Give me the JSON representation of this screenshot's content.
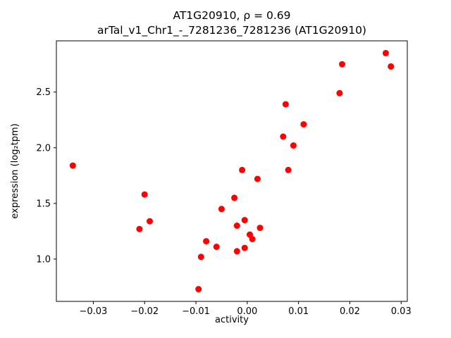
{
  "chart_data": {
    "type": "scatter",
    "title_line1": "AT1G20910, ρ = 0.69",
    "title_line2": "arTal_v1_Chr1_-_7281236_7281236 (AT1G20910)",
    "xlabel": "activity",
    "ylabel": "expression (log₂tpm)",
    "marker_color": "#ff0000",
    "axis_color": "#000000",
    "background_color": "#ffffff",
    "grid": false,
    "legend": "none",
    "xlim": [
      -0.0372,
      0.0312
    ],
    "ylim": [
      0.62,
      2.96
    ],
    "xticks": [
      {
        "value": -0.03,
        "label": "−0.03"
      },
      {
        "value": -0.02,
        "label": "−0.02"
      },
      {
        "value": -0.01,
        "label": "−0.01"
      },
      {
        "value": 0.0,
        "label": "0.00"
      },
      {
        "value": 0.01,
        "label": "0.01"
      },
      {
        "value": 0.02,
        "label": "0.02"
      },
      {
        "value": 0.03,
        "label": "0.03"
      }
    ],
    "yticks": [
      {
        "value": 1.0,
        "label": "1.0"
      },
      {
        "value": 1.5,
        "label": "1.5"
      },
      {
        "value": 2.0,
        "label": "2.0"
      },
      {
        "value": 2.5,
        "label": "2.5"
      }
    ],
    "points": [
      [
        -0.034,
        1.84
      ],
      [
        -0.021,
        1.27
      ],
      [
        -0.02,
        1.58
      ],
      [
        -0.019,
        1.34
      ],
      [
        -0.0095,
        0.73
      ],
      [
        -0.009,
        1.02
      ],
      [
        -0.008,
        1.16
      ],
      [
        -0.006,
        1.11
      ],
      [
        -0.005,
        1.45
      ],
      [
        -0.0025,
        1.55
      ],
      [
        -0.002,
        1.3
      ],
      [
        -0.002,
        1.07
      ],
      [
        -0.001,
        1.8
      ],
      [
        -0.0005,
        1.35
      ],
      [
        -0.0005,
        1.1
      ],
      [
        0.0005,
        1.22
      ],
      [
        0.001,
        1.18
      ],
      [
        0.002,
        1.72
      ],
      [
        0.0025,
        1.28
      ],
      [
        0.007,
        2.1
      ],
      [
        0.0075,
        2.39
      ],
      [
        0.008,
        1.8
      ],
      [
        0.009,
        2.02
      ],
      [
        0.011,
        2.21
      ],
      [
        0.018,
        2.49
      ],
      [
        0.0185,
        2.75
      ],
      [
        0.027,
        2.85
      ],
      [
        0.028,
        2.73
      ]
    ]
  }
}
